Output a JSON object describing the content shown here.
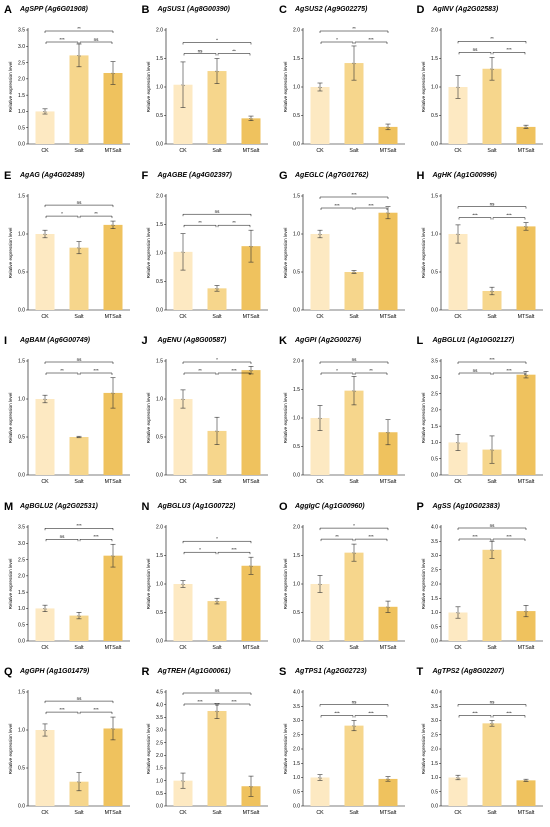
{
  "figure": {
    "y_axis_label": "Relative expression level",
    "colors": {
      "CK": "#fde9c2",
      "Salt": "#f6d68c",
      "MTSalt": "#efc25e"
    }
  },
  "chart_data": [
    {
      "panel": "A",
      "type": "bar",
      "title": "AgSPP (Ag6G01908)",
      "categories": [
        "CK",
        "Salt",
        "MTSalt"
      ],
      "values": [
        1.0,
        2.72,
        2.18
      ],
      "errors": [
        0.08,
        0.35,
        0.35
      ],
      "ylabel": "Relative expression level",
      "ylim": [
        0,
        3.5
      ],
      "yticks": [
        "0.0",
        "0.5",
        "1.0",
        "1.5",
        "2.0",
        "2.5",
        "3.0",
        "3.5"
      ],
      "comparisons": [
        {
          "pair": [
            0,
            1
          ],
          "label": "***"
        },
        {
          "pair": [
            1,
            2
          ],
          "label": "ns"
        },
        {
          "pair": [
            0,
            2
          ],
          "label": "**"
        }
      ]
    },
    {
      "panel": "B",
      "type": "bar",
      "title": "AgSUS1 (Ag8G00390)",
      "categories": [
        "CK",
        "Salt",
        "MTSalt"
      ],
      "values": [
        1.04,
        1.28,
        0.45
      ],
      "errors": [
        0.4,
        0.22,
        0.04
      ],
      "ylabel": "Relative expression level",
      "ylim": [
        0,
        2.0
      ],
      "yticks": [
        "0.0",
        "0.5",
        "1.0",
        "1.5",
        "2.0"
      ],
      "comparisons": [
        {
          "pair": [
            0,
            1
          ],
          "label": "ns"
        },
        {
          "pair": [
            1,
            2
          ],
          "label": "**"
        },
        {
          "pair": [
            0,
            2
          ],
          "label": "*"
        }
      ]
    },
    {
      "panel": "C",
      "type": "bar",
      "title": "AgSUS2 (Ag9G02275)",
      "categories": [
        "CK",
        "Salt",
        "MTSalt"
      ],
      "values": [
        1.0,
        1.42,
        0.3
      ],
      "errors": [
        0.07,
        0.3,
        0.05
      ],
      "ylabel": "Relative expression level",
      "ylim": [
        0,
        2.0
      ],
      "yticks": [
        "0.0",
        "0.5",
        "1.0",
        "1.5",
        "2.0"
      ],
      "comparisons": [
        {
          "pair": [
            0,
            1
          ],
          "label": "*"
        },
        {
          "pair": [
            1,
            2
          ],
          "label": "***"
        },
        {
          "pair": [
            0,
            2
          ],
          "label": "**"
        }
      ]
    },
    {
      "panel": "D",
      "type": "bar",
      "title": "AgINV (Ag2G02583)",
      "categories": [
        "CK",
        "Salt",
        "MTSalt"
      ],
      "values": [
        1.0,
        1.32,
        0.3
      ],
      "errors": [
        0.2,
        0.2,
        0.03
      ],
      "ylabel": "Relative expression level",
      "ylim": [
        0,
        2.0
      ],
      "yticks": [
        "0.0",
        "0.5",
        "1.0",
        "1.5",
        "2.0"
      ],
      "comparisons": [
        {
          "pair": [
            0,
            1
          ],
          "label": "ns"
        },
        {
          "pair": [
            1,
            2
          ],
          "label": "***"
        },
        {
          "pair": [
            0,
            2
          ],
          "label": "**"
        }
      ]
    },
    {
      "panel": "E",
      "type": "bar",
      "title": "AgAG (Ag4G02489)",
      "categories": [
        "CK",
        "Salt",
        "MTSalt"
      ],
      "values": [
        1.0,
        0.82,
        1.12
      ],
      "errors": [
        0.05,
        0.08,
        0.05
      ],
      "ylabel": "Relative expression level",
      "ylim": [
        0,
        1.5
      ],
      "yticks": [
        "0.0",
        "0.5",
        "1.0",
        "1.5"
      ],
      "comparisons": [
        {
          "pair": [
            0,
            1
          ],
          "label": "*"
        },
        {
          "pair": [
            1,
            2
          ],
          "label": "**"
        },
        {
          "pair": [
            0,
            2
          ],
          "label": "ns"
        }
      ]
    },
    {
      "panel": "F",
      "type": "bar",
      "title": "AgAGBE (Ag4G02397)",
      "categories": [
        "CK",
        "Salt",
        "MTSalt"
      ],
      "values": [
        1.02,
        0.38,
        1.12
      ],
      "errors": [
        0.32,
        0.05,
        0.28
      ],
      "ylabel": "Relative expression level",
      "ylim": [
        0,
        2.0
      ],
      "yticks": [
        "0.0",
        "0.5",
        "1.0",
        "1.5",
        "2.0"
      ],
      "comparisons": [
        {
          "pair": [
            0,
            1
          ],
          "label": "**"
        },
        {
          "pair": [
            1,
            2
          ],
          "label": "**"
        },
        {
          "pair": [
            0,
            2
          ],
          "label": "ns"
        }
      ]
    },
    {
      "panel": "G",
      "type": "bar",
      "title": "AgEGLC (Ag7G01762)",
      "categories": [
        "CK",
        "Salt",
        "MTSalt"
      ],
      "values": [
        1.0,
        0.5,
        1.28
      ],
      "errors": [
        0.05,
        0.02,
        0.08
      ],
      "ylabel": "Relative expression level",
      "ylim": [
        0,
        1.5
      ],
      "yticks": [
        "0.0",
        "0.5",
        "1.0",
        "1.5"
      ],
      "comparisons": [
        {
          "pair": [
            0,
            1
          ],
          "label": "***"
        },
        {
          "pair": [
            1,
            2
          ],
          "label": "***"
        },
        {
          "pair": [
            0,
            2
          ],
          "label": "***"
        }
      ]
    },
    {
      "panel": "H",
      "type": "bar",
      "title": "AgHK (Ag1G00996)",
      "categories": [
        "CK",
        "Salt",
        "MTSalt"
      ],
      "values": [
        1.0,
        0.25,
        1.1
      ],
      "errors": [
        0.12,
        0.05,
        0.05
      ],
      "ylabel": "Relative expression level",
      "ylim": [
        0,
        1.5
      ],
      "yticks": [
        "0.0",
        "0.5",
        "1.0",
        "1.5"
      ],
      "comparisons": [
        {
          "pair": [
            0,
            1
          ],
          "label": "***"
        },
        {
          "pair": [
            1,
            2
          ],
          "label": "***"
        },
        {
          "pair": [
            0,
            2
          ],
          "label": "ns"
        }
      ]
    },
    {
      "panel": "I",
      "type": "bar",
      "title": "AgBAM (Ag6G00749)",
      "categories": [
        "CK",
        "Salt",
        "MTSalt"
      ],
      "values": [
        1.0,
        0.5,
        1.08
      ],
      "errors": [
        0.05,
        0.01,
        0.2
      ],
      "ylabel": "Relative expression level",
      "ylim": [
        0,
        1.5
      ],
      "yticks": [
        "0.0",
        "0.5",
        "1.0",
        "1.5"
      ],
      "comparisons": [
        {
          "pair": [
            0,
            1
          ],
          "label": "**"
        },
        {
          "pair": [
            1,
            2
          ],
          "label": "***"
        },
        {
          "pair": [
            0,
            2
          ],
          "label": "ns"
        }
      ]
    },
    {
      "panel": "J",
      "type": "bar",
      "title": "AgENU (Ag8G00587)",
      "categories": [
        "CK",
        "Salt",
        "MTSalt"
      ],
      "values": [
        1.0,
        0.58,
        1.38
      ],
      "errors": [
        0.12,
        0.18,
        0.05
      ],
      "ylabel": "Relative expression level",
      "ylim": [
        0,
        1.5
      ],
      "yticks": [
        "0.0",
        "0.5",
        "1.0",
        "1.5"
      ],
      "comparisons": [
        {
          "pair": [
            0,
            1
          ],
          "label": "**"
        },
        {
          "pair": [
            1,
            2
          ],
          "label": "***"
        },
        {
          "pair": [
            0,
            2
          ],
          "label": "*"
        }
      ]
    },
    {
      "panel": "K",
      "type": "bar",
      "title": "AgGPI (Ag2G00276)",
      "categories": [
        "CK",
        "Salt",
        "MTSalt"
      ],
      "values": [
        1.0,
        1.48,
        0.75
      ],
      "errors": [
        0.22,
        0.25,
        0.22
      ],
      "ylabel": "Relative expression level",
      "ylim": [
        0,
        2.0
      ],
      "yticks": [
        "0.0",
        "0.5",
        "1.0",
        "1.5",
        "2.0"
      ],
      "comparisons": [
        {
          "pair": [
            0,
            1
          ],
          "label": "*"
        },
        {
          "pair": [
            1,
            2
          ],
          "label": "**"
        },
        {
          "pair": [
            0,
            2
          ],
          "label": "ns"
        }
      ]
    },
    {
      "panel": "L",
      "type": "bar",
      "title": "AgBGLU1 (Ag10G02127)",
      "categories": [
        "CK",
        "Salt",
        "MTSalt"
      ],
      "values": [
        1.0,
        0.78,
        3.08
      ],
      "errors": [
        0.25,
        0.42,
        0.1
      ],
      "ylabel": "Relative expression level",
      "ylim": [
        0,
        3.5
      ],
      "yticks": [
        "0.0",
        "0.5",
        "1.0",
        "1.5",
        "2.0",
        "2.5",
        "3.0",
        "3.5"
      ],
      "comparisons": [
        {
          "pair": [
            0,
            1
          ],
          "label": "ns"
        },
        {
          "pair": [
            1,
            2
          ],
          "label": "***"
        },
        {
          "pair": [
            0,
            2
          ],
          "label": "***"
        }
      ]
    },
    {
      "panel": "M",
      "type": "bar",
      "title": "AgBGLU2 (Ag2G02531)",
      "categories": [
        "CK",
        "Salt",
        "MTSalt"
      ],
      "values": [
        1.0,
        0.78,
        2.62
      ],
      "errors": [
        0.1,
        0.1,
        0.35
      ],
      "ylabel": "Relative expression level",
      "ylim": [
        0,
        3.5
      ],
      "yticks": [
        "0.0",
        "0.5",
        "1.0",
        "1.5",
        "2.0",
        "2.5",
        "3.0",
        "3.5"
      ],
      "comparisons": [
        {
          "pair": [
            0,
            1
          ],
          "label": "ns"
        },
        {
          "pair": [
            1,
            2
          ],
          "label": "***"
        },
        {
          "pair": [
            0,
            2
          ],
          "label": "***"
        }
      ]
    },
    {
      "panel": "N",
      "type": "bar",
      "title": "AgBGLU3 (Ag1G00722)",
      "categories": [
        "CK",
        "Salt",
        "MTSalt"
      ],
      "values": [
        1.0,
        0.7,
        1.32
      ],
      "errors": [
        0.06,
        0.05,
        0.15
      ],
      "ylabel": "Relative expression level",
      "ylim": [
        0,
        2.0
      ],
      "yticks": [
        "0.0",
        "0.5",
        "1.0",
        "1.5",
        "2.0"
      ],
      "comparisons": [
        {
          "pair": [
            0,
            1
          ],
          "label": "*"
        },
        {
          "pair": [
            1,
            2
          ],
          "label": "***"
        },
        {
          "pair": [
            0,
            2
          ],
          "label": "*"
        }
      ]
    },
    {
      "panel": "O",
      "type": "bar",
      "title": "AggIgC (Ag1G00960)",
      "categories": [
        "CK",
        "Salt",
        "MTSalt"
      ],
      "values": [
        1.0,
        1.55,
        0.6
      ],
      "errors": [
        0.15,
        0.15,
        0.1
      ],
      "ylabel": "Relative expression level",
      "ylim": [
        0,
        2.0
      ],
      "yticks": [
        "0.0",
        "0.5",
        "1.0",
        "1.5",
        "2.0"
      ],
      "comparisons": [
        {
          "pair": [
            0,
            1
          ],
          "label": "**"
        },
        {
          "pair": [
            1,
            2
          ],
          "label": "***"
        },
        {
          "pair": [
            0,
            2
          ],
          "label": "*"
        }
      ]
    },
    {
      "panel": "P",
      "type": "bar",
      "title": "AgSS (Ag10G02383)",
      "categories": [
        "CK",
        "Salt",
        "MTSalt"
      ],
      "values": [
        1.0,
        3.2,
        1.05
      ],
      "errors": [
        0.2,
        0.3,
        0.2
      ],
      "ylabel": "Relative expression level",
      "ylim": [
        0,
        4.0
      ],
      "yticks": [
        "0.0",
        "0.5",
        "1.0",
        "1.5",
        "2.0",
        "2.5",
        "3.0",
        "3.5",
        "4.0"
      ],
      "comparisons": [
        {
          "pair": [
            0,
            1
          ],
          "label": "***"
        },
        {
          "pair": [
            1,
            2
          ],
          "label": "***"
        },
        {
          "pair": [
            0,
            2
          ],
          "label": "ns"
        }
      ]
    },
    {
      "panel": "Q",
      "type": "bar",
      "title": "AgGPH (Ag1G01479)",
      "categories": [
        "CK",
        "Salt",
        "MTSalt"
      ],
      "values": [
        1.0,
        0.32,
        1.02
      ],
      "errors": [
        0.08,
        0.12,
        0.15
      ],
      "ylabel": "Relative expression level",
      "ylim": [
        0,
        1.5
      ],
      "yticks": [
        "0.0",
        "0.5",
        "1.0",
        "1.5"
      ],
      "comparisons": [
        {
          "pair": [
            0,
            1
          ],
          "label": "***"
        },
        {
          "pair": [
            1,
            2
          ],
          "label": "***"
        },
        {
          "pair": [
            0,
            2
          ],
          "label": "ns"
        }
      ]
    },
    {
      "panel": "R",
      "type": "bar",
      "title": "AgTREH (Ag1G00061)",
      "categories": [
        "CK",
        "Salt",
        "MTSalt"
      ],
      "values": [
        1.0,
        3.75,
        0.78
      ],
      "errors": [
        0.3,
        0.3,
        0.4
      ],
      "ylabel": "Relative expression level",
      "ylim": [
        0,
        4.5
      ],
      "yticks": [
        "0.0",
        "0.5",
        "1.0",
        "1.5",
        "2.0",
        "2.5",
        "3.0",
        "3.5",
        "4.0",
        "4.5"
      ],
      "comparisons": [
        {
          "pair": [
            0,
            1
          ],
          "label": "***"
        },
        {
          "pair": [
            1,
            2
          ],
          "label": "***"
        },
        {
          "pair": [
            0,
            2
          ],
          "label": "ns"
        }
      ]
    },
    {
      "panel": "S",
      "type": "bar",
      "title": "AgTPS1 (Ag2G02723)",
      "categories": [
        "CK",
        "Salt",
        "MTSalt"
      ],
      "values": [
        1.0,
        2.82,
        0.95
      ],
      "errors": [
        0.1,
        0.18,
        0.08
      ],
      "ylabel": "Relative expression level",
      "ylim": [
        0,
        4.0
      ],
      "yticks": [
        "0.0",
        "0.5",
        "1.0",
        "1.5",
        "2.0",
        "2.5",
        "3.0",
        "3.5",
        "4.0"
      ],
      "comparisons": [
        {
          "pair": [
            0,
            1
          ],
          "label": "***"
        },
        {
          "pair": [
            1,
            2
          ],
          "label": "***"
        },
        {
          "pair": [
            0,
            2
          ],
          "label": "ns"
        }
      ]
    },
    {
      "panel": "T",
      "type": "bar",
      "title": "AgTPS2 (Ag8G02207)",
      "categories": [
        "CK",
        "Salt",
        "MTSalt"
      ],
      "values": [
        1.0,
        2.9,
        0.9
      ],
      "errors": [
        0.08,
        0.1,
        0.04
      ],
      "ylabel": "Relative expression level",
      "ylim": [
        0,
        4.0
      ],
      "yticks": [
        "0.0",
        "0.5",
        "1.0",
        "1.5",
        "2.0",
        "2.5",
        "3.0",
        "3.5",
        "4.0"
      ],
      "comparisons": [
        {
          "pair": [
            0,
            1
          ],
          "label": "***"
        },
        {
          "pair": [
            1,
            2
          ],
          "label": "***"
        },
        {
          "pair": [
            0,
            2
          ],
          "label": "ns"
        }
      ]
    }
  ]
}
